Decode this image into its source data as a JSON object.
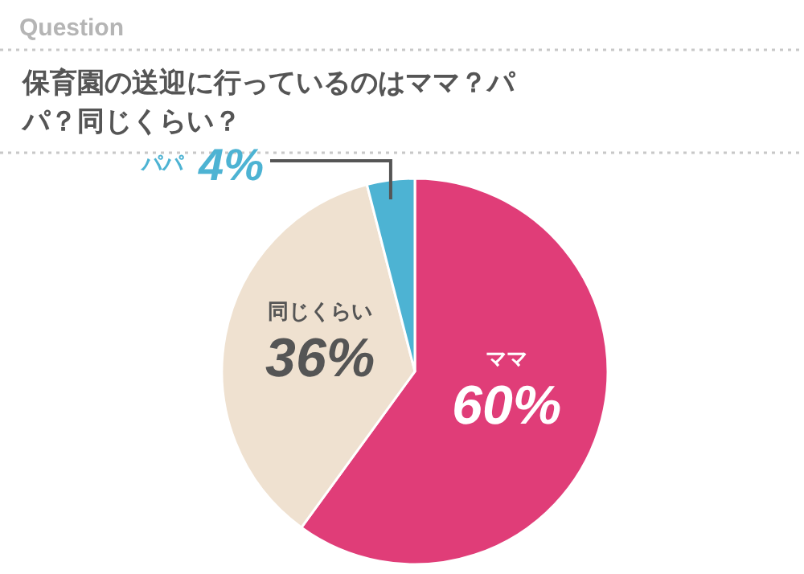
{
  "chart_data": {
    "type": "pie",
    "title": "保育園の送迎に行っているのはママ？パパ？同じくらい？",
    "annotations": [
      "Question"
    ],
    "categories": [
      "ママ",
      "同じくらい",
      "パパ"
    ],
    "values": [
      60,
      36,
      4
    ],
    "value_labels": [
      "60%",
      "36%",
      "4%"
    ],
    "colors": [
      "#e03d78",
      "#efe1d0",
      "#4db3d3"
    ]
  }
}
